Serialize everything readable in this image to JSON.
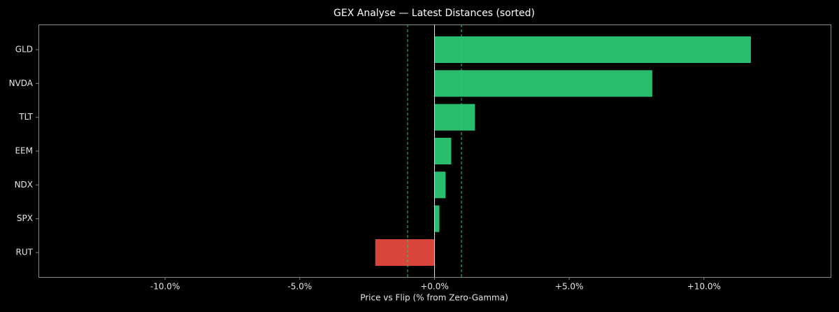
{
  "chart_data": {
    "type": "barh",
    "title": "GEX Analyse — Latest Distances (sorted)",
    "x_label": "Price vs Flip (% from Zero-Gamma)",
    "categories": [
      "GLD",
      "NVDA",
      "TLT",
      "EEM",
      "NDX",
      "SPX",
      "RUT"
    ],
    "values": [
      11.74,
      8.08,
      1.5,
      0.62,
      0.41,
      0.18,
      -2.2
    ],
    "colors": [
      "#2bbd6e",
      "#2bbd6e",
      "#2bbd6e",
      "#2bbd6e",
      "#2bbd6e",
      "#2bbd6e",
      "#d9453a"
    ],
    "xlim": [
      -14.7,
      14.7
    ],
    "xticks": [
      {
        "value": -10,
        "label": "-10.0%"
      },
      {
        "value": -5,
        "label": "-5.0%"
      },
      {
        "value": 0,
        "label": "+0.0%"
      },
      {
        "value": 5,
        "label": "+5.0%"
      },
      {
        "value": 10,
        "label": "+10.0%"
      }
    ],
    "reference_lines": [
      {
        "value": -1,
        "color": "#2ecc71"
      },
      {
        "value": 1,
        "color": "#2ecc71"
      }
    ]
  }
}
